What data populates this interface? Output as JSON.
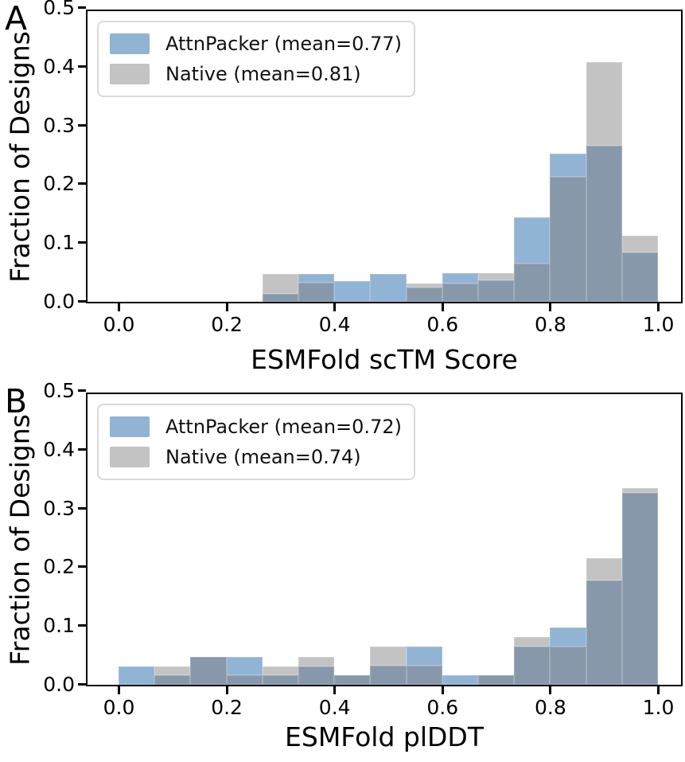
{
  "colors": {
    "attnpacker": "#91b3d4",
    "native": "#c3c3c3",
    "overlap": "#8698aa",
    "axis": "#000000",
    "legend_border": "#dadada"
  },
  "figure": {
    "panels": [
      {
        "letter": "A",
        "xlabel": "ESMFold  scTM Score",
        "ylabel": "Fraction of Designs",
        "legend": {
          "entries": [
            {
              "label": "AttnPacker (mean=0.77)",
              "series": "attnpacker"
            },
            {
              "label": "Native (mean=0.81)",
              "series": "native"
            }
          ]
        }
      },
      {
        "letter": "B",
        "xlabel": "ESMFold plDDT",
        "ylabel": "Fraction of Designs",
        "legend": {
          "entries": [
            {
              "label": "AttnPacker (mean=0.72)",
              "series": "attnpacker"
            },
            {
              "label": "Native (mean=0.74)",
              "series": "native"
            }
          ]
        }
      }
    ]
  },
  "chart_data": [
    {
      "type": "bar",
      "subtype": "overlapping-histogram",
      "panel": "A",
      "xlabel": "ESMFold  scTM Score",
      "ylabel": "Fraction of Designs",
      "xlim": [
        -0.05,
        1.05
      ],
      "ylim": [
        0,
        0.5
      ],
      "grid": false,
      "legend_position": "upper-left",
      "x_ticks": [
        "0.0",
        "0.2",
        "0.4",
        "0.6",
        "0.8",
        "1.0"
      ],
      "y_ticks": [
        "0.0",
        "0.1",
        "0.2",
        "0.3",
        "0.4",
        "0.5"
      ],
      "bin_edges": [
        0,
        0.0667,
        0.1333,
        0.2,
        0.2667,
        0.3333,
        0.4,
        0.4667,
        0.5333,
        0.6,
        0.6667,
        0.7333,
        0.8,
        0.8667,
        0.9333,
        1.0
      ],
      "series": [
        {
          "name": "AttnPacker (mean=0.77)",
          "mean": 0.77,
          "color_key": "attnpacker",
          "values": [
            0,
            0,
            0,
            0,
            0.013,
            0.047,
            0.035,
            0.047,
            0.024,
            0.049,
            0.037,
            0.144,
            0.252,
            0.265,
            0.084
          ]
        },
        {
          "name": "Native (mean=0.81)",
          "mean": 0.81,
          "color_key": "native",
          "values": [
            0,
            0,
            0,
            0,
            0.048,
            0.033,
            0,
            0,
            0.031,
            0.031,
            0.049,
            0.065,
            0.213,
            0.408,
            0.113
          ]
        }
      ]
    },
    {
      "type": "bar",
      "subtype": "overlapping-histogram",
      "panel": "B",
      "xlabel": "ESMFold plDDT",
      "ylabel": "Fraction of Designs",
      "xlim": [
        -0.05,
        1.05
      ],
      "ylim": [
        0,
        0.5
      ],
      "grid": false,
      "legend_position": "upper-left",
      "x_ticks": [
        "0.0",
        "0.2",
        "0.4",
        "0.6",
        "0.8",
        "1.0"
      ],
      "y_ticks": [
        "0.0",
        "0.1",
        "0.2",
        "0.3",
        "0.4",
        "0.5"
      ],
      "bin_edges": [
        0,
        0.0667,
        0.1333,
        0.2,
        0.2667,
        0.3333,
        0.4,
        0.4667,
        0.5333,
        0.6,
        0.6667,
        0.7333,
        0.8,
        0.8667,
        0.9333,
        1.0
      ],
      "series": [
        {
          "name": "AttnPacker (mean=0.72)",
          "mean": 0.72,
          "color_key": "attnpacker",
          "values": [
            0.031,
            0.016,
            0.048,
            0.048,
            0.016,
            0.031,
            0.016,
            0.032,
            0.065,
            0.016,
            0.016,
            0.065,
            0.097,
            0.178,
            0.327
          ]
        },
        {
          "name": "Native (mean=0.74)",
          "mean": 0.74,
          "color_key": "native",
          "values": [
            0,
            0.031,
            0.048,
            0.016,
            0.031,
            0.048,
            0.016,
            0.065,
            0.032,
            0,
            0.016,
            0.082,
            0.065,
            0.215,
            0.335
          ]
        }
      ]
    }
  ]
}
